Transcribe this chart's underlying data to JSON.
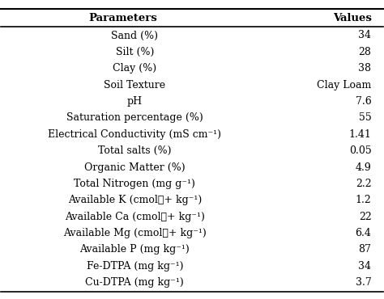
{
  "headers": [
    "Parameters",
    "Values"
  ],
  "rows": [
    [
      "Sand (%)",
      "34"
    ],
    [
      "Silt (%)",
      "28"
    ],
    [
      "Clay (%)",
      "38"
    ],
    [
      "Soil Texture",
      "Clay Loam"
    ],
    [
      "pH",
      "7.6"
    ],
    [
      "Saturation percentage (%)",
      "55"
    ],
    [
      "Electrical Conductivity (mS cm⁻¹)",
      "1.41"
    ],
    [
      "Total salts (%)",
      "0.05"
    ],
    [
      "Organic Matter (%)",
      "4.9"
    ],
    [
      "Total Nitrogen (mg g⁻¹)",
      "2.2"
    ],
    [
      "Available K (cmolℓ+ kg⁻¹)",
      "1.2"
    ],
    [
      "Available Ca (cmolℓ+ kg⁻¹)",
      "22"
    ],
    [
      "Available Mg (cmolℓ+ kg⁻¹)",
      "6.4"
    ],
    [
      "Available P (mg kg⁻¹)",
      "87"
    ],
    [
      "Fe-DTPA (mg kg⁻¹)",
      "34"
    ],
    [
      "Cu-DTPA (mg kg⁻¹)",
      "3.7"
    ]
  ],
  "background_color": "#ffffff",
  "header_line_color": "#000000",
  "text_color": "#000000",
  "font_size": 9.0,
  "header_font_size": 9.5
}
